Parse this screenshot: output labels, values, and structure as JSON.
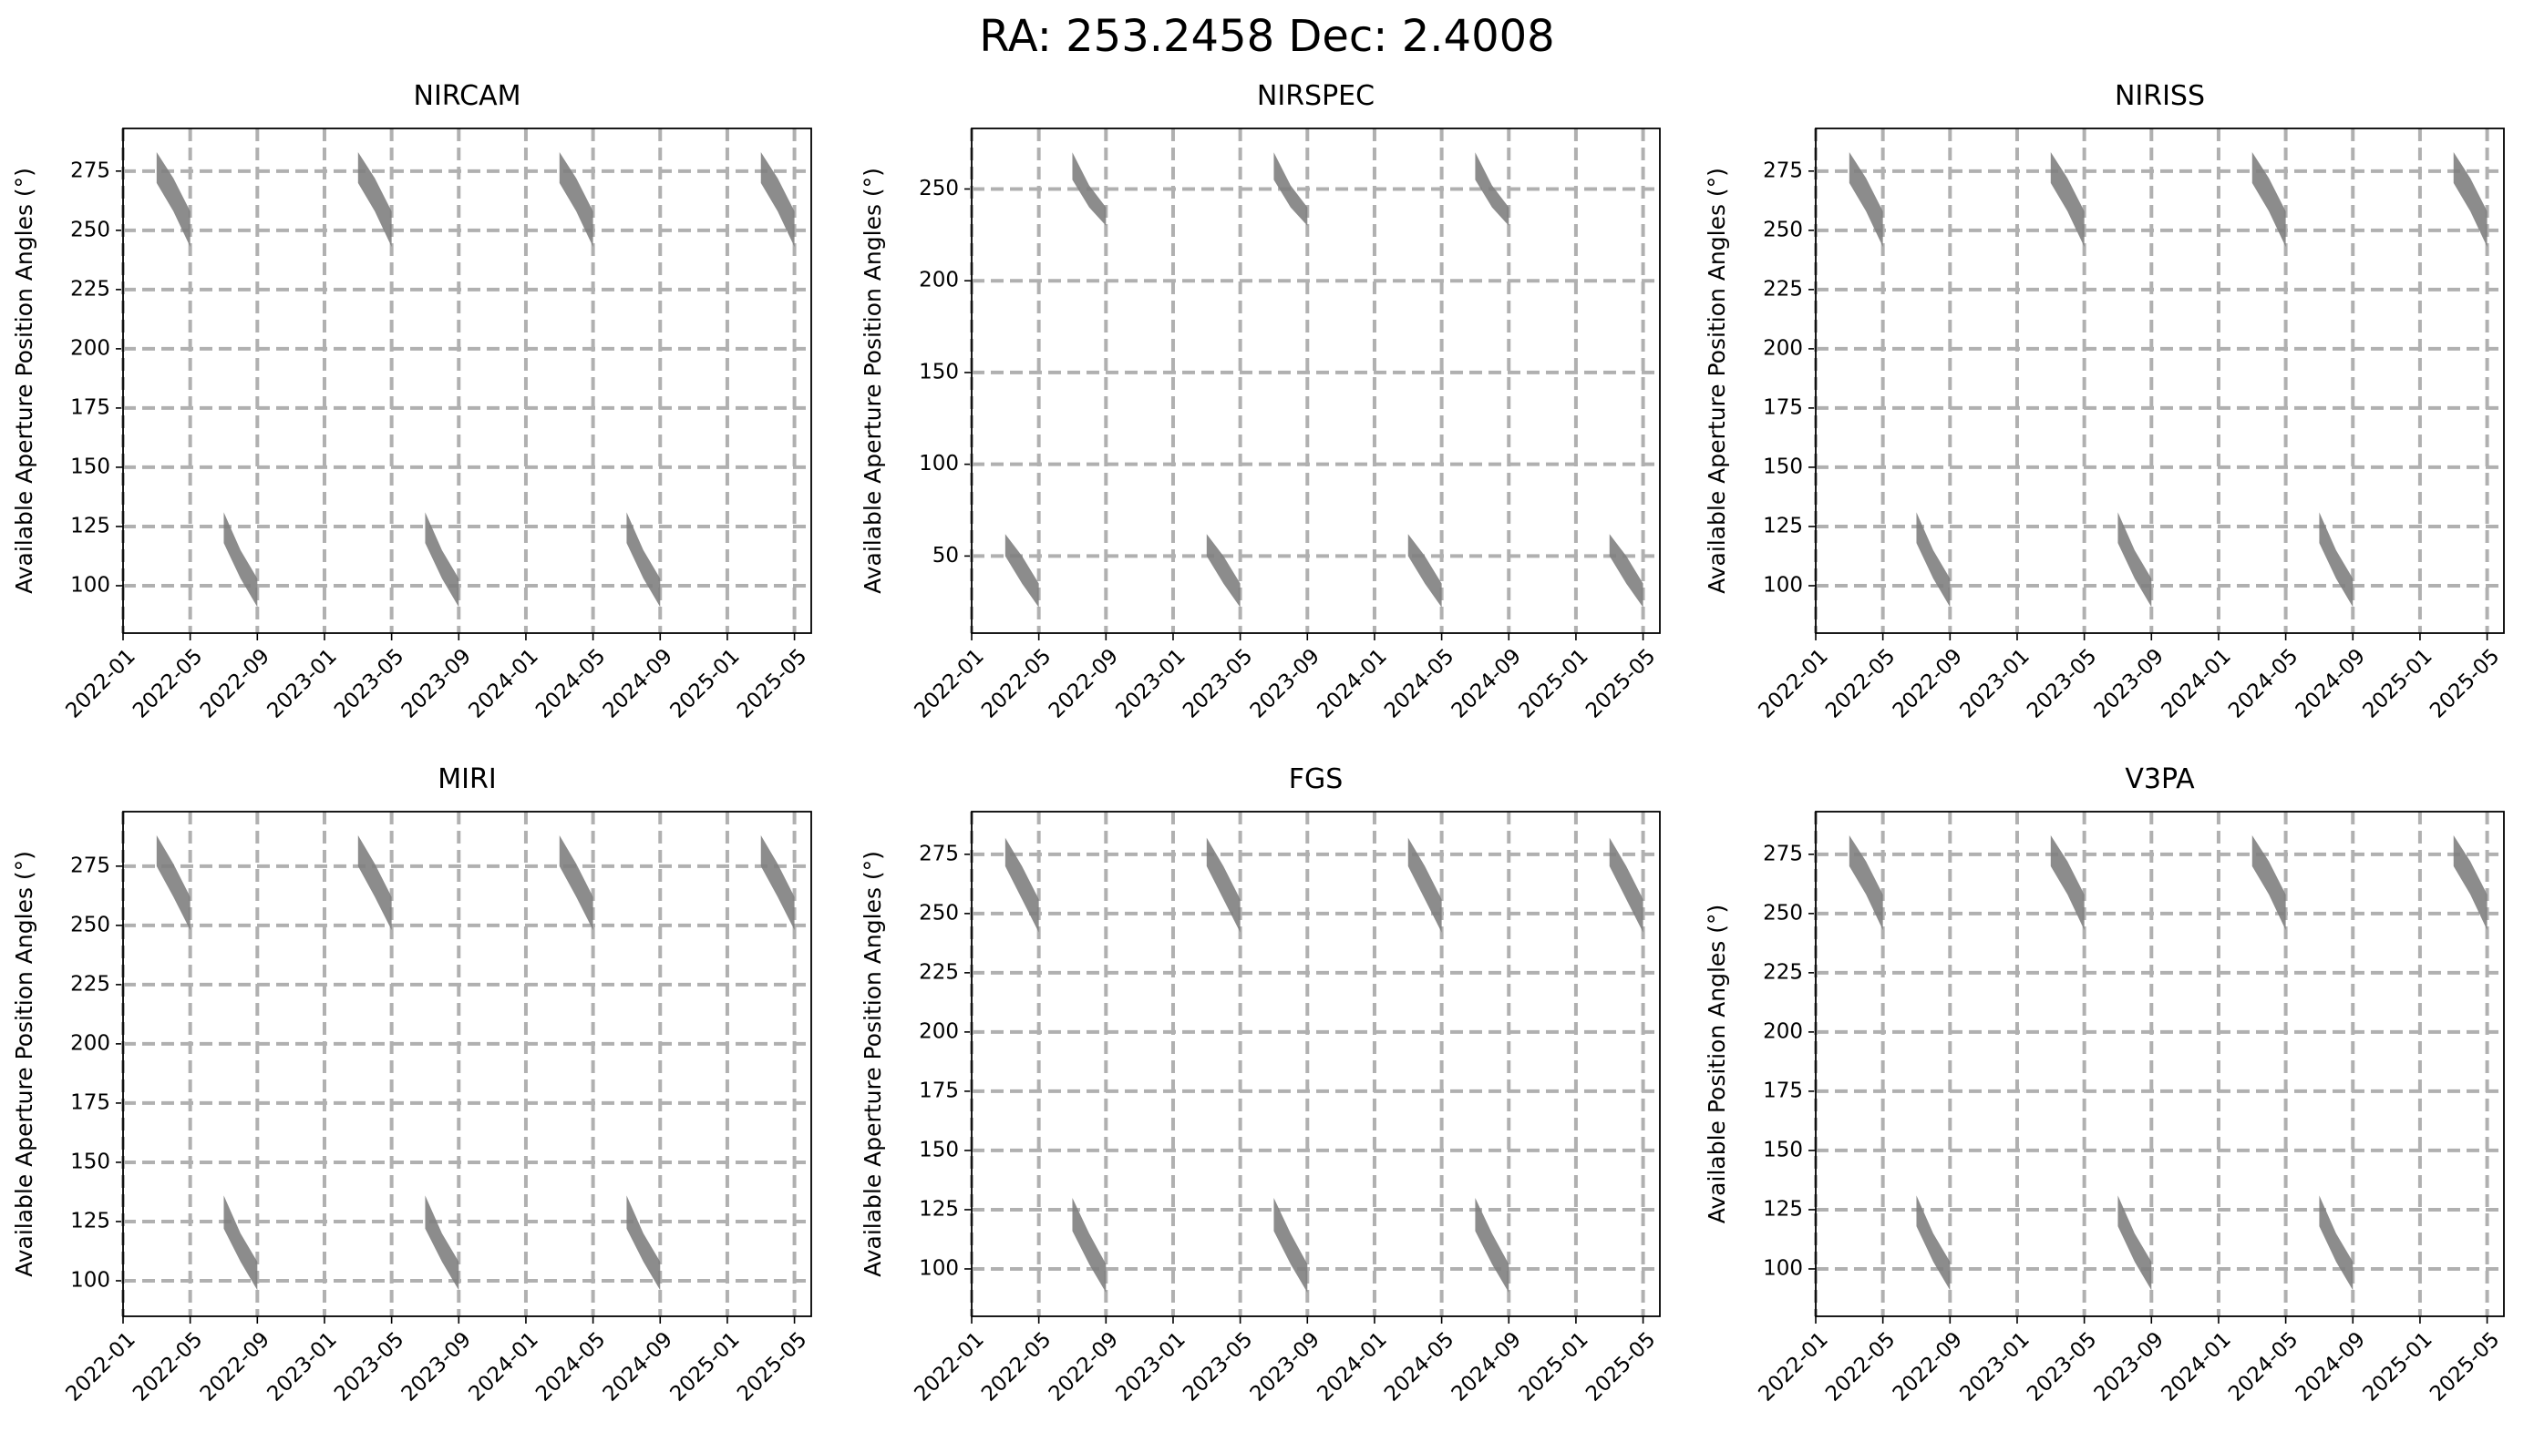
{
  "title": "RA: 253.2458 Dec: 2.4008",
  "chart_data": [
    {
      "type": "band",
      "title": "NIRCAM",
      "ylabel": "Available Aperture Position Angles (°)",
      "color": "#7f7f7f",
      "grid": true,
      "xlim": [
        "2022-01",
        "2025-06"
      ],
      "xticks": [
        "2022-01",
        "2022-05",
        "2022-09",
        "2023-01",
        "2023-05",
        "2023-09",
        "2024-01",
        "2024-05",
        "2024-09",
        "2025-01",
        "2025-05"
      ],
      "ylim": [
        80,
        293
      ],
      "yticks": [
        100,
        125,
        150,
        175,
        200,
        225,
        250,
        275
      ],
      "bands": [
        {
          "x": [
            "2022-03",
            "2022-04",
            "2022-05"
          ],
          "upper": [
            283,
            272,
            258
          ],
          "lower": [
            270,
            258,
            243
          ]
        },
        {
          "x": [
            "2023-03",
            "2023-04",
            "2023-05"
          ],
          "upper": [
            283,
            272,
            258
          ],
          "lower": [
            270,
            258,
            243
          ]
        },
        {
          "x": [
            "2024-03",
            "2024-04",
            "2024-05"
          ],
          "upper": [
            283,
            272,
            258
          ],
          "lower": [
            270,
            258,
            243
          ]
        },
        {
          "x": [
            "2025-03",
            "2025-04",
            "2025-05"
          ],
          "upper": [
            283,
            272,
            258
          ],
          "lower": [
            270,
            258,
            243
          ]
        },
        {
          "x": [
            "2022-07",
            "2022-08",
            "2022-09"
          ],
          "upper": [
            131,
            115,
            103
          ],
          "lower": [
            118,
            103,
            91
          ]
        },
        {
          "x": [
            "2023-07",
            "2023-08",
            "2023-09"
          ],
          "upper": [
            131,
            115,
            103
          ],
          "lower": [
            118,
            103,
            91
          ]
        },
        {
          "x": [
            "2024-07",
            "2024-08",
            "2024-09"
          ],
          "upper": [
            131,
            115,
            103
          ],
          "lower": [
            118,
            103,
            91
          ]
        }
      ]
    },
    {
      "type": "band",
      "title": "NIRSPEC",
      "ylabel": "Available Aperture Position Angles (°)",
      "color": "#7f7f7f",
      "grid": true,
      "xlim": [
        "2022-01",
        "2025-06"
      ],
      "xticks": [
        "2022-01",
        "2022-05",
        "2022-09",
        "2023-01",
        "2023-05",
        "2023-09",
        "2024-01",
        "2024-05",
        "2024-09",
        "2025-01",
        "2025-05"
      ],
      "ylim": [
        8,
        283
      ],
      "yticks": [
        50,
        100,
        150,
        200,
        250
      ],
      "bands": [
        {
          "x": [
            "2022-07",
            "2022-08",
            "2022-09"
          ],
          "upper": [
            270,
            252,
            240
          ],
          "lower": [
            255,
            240,
            230
          ]
        },
        {
          "x": [
            "2023-07",
            "2023-08",
            "2023-09"
          ],
          "upper": [
            270,
            252,
            240
          ],
          "lower": [
            255,
            240,
            230
          ]
        },
        {
          "x": [
            "2024-07",
            "2024-08",
            "2024-09"
          ],
          "upper": [
            270,
            252,
            240
          ],
          "lower": [
            255,
            240,
            230
          ]
        },
        {
          "x": [
            "2022-03",
            "2022-04",
            "2022-05"
          ],
          "upper": [
            62,
            50,
            35
          ],
          "lower": [
            50,
            35,
            22
          ]
        },
        {
          "x": [
            "2023-03",
            "2023-04",
            "2023-05"
          ],
          "upper": [
            62,
            50,
            35
          ],
          "lower": [
            50,
            35,
            22
          ]
        },
        {
          "x": [
            "2024-03",
            "2024-04",
            "2024-05"
          ],
          "upper": [
            62,
            50,
            35
          ],
          "lower": [
            50,
            35,
            22
          ]
        },
        {
          "x": [
            "2025-03",
            "2025-04",
            "2025-05"
          ],
          "upper": [
            62,
            50,
            35
          ],
          "lower": [
            50,
            35,
            22
          ]
        }
      ]
    },
    {
      "type": "band",
      "title": "NIRISS",
      "ylabel": "Available Aperture Position Angles (°)",
      "color": "#7f7f7f",
      "grid": true,
      "xlim": [
        "2022-01",
        "2025-06"
      ],
      "xticks": [
        "2022-01",
        "2022-05",
        "2022-09",
        "2023-01",
        "2023-05",
        "2023-09",
        "2024-01",
        "2024-05",
        "2024-09",
        "2025-01",
        "2025-05"
      ],
      "ylim": [
        80,
        293
      ],
      "yticks": [
        100,
        125,
        150,
        175,
        200,
        225,
        250,
        275
      ],
      "bands": [
        {
          "x": [
            "2022-03",
            "2022-04",
            "2022-05"
          ],
          "upper": [
            283,
            272,
            258
          ],
          "lower": [
            270,
            258,
            243
          ]
        },
        {
          "x": [
            "2023-03",
            "2023-04",
            "2023-05"
          ],
          "upper": [
            283,
            272,
            258
          ],
          "lower": [
            270,
            258,
            243
          ]
        },
        {
          "x": [
            "2024-03",
            "2024-04",
            "2024-05"
          ],
          "upper": [
            283,
            272,
            258
          ],
          "lower": [
            270,
            258,
            243
          ]
        },
        {
          "x": [
            "2025-03",
            "2025-04",
            "2025-05"
          ],
          "upper": [
            283,
            272,
            258
          ],
          "lower": [
            270,
            258,
            243
          ]
        },
        {
          "x": [
            "2022-07",
            "2022-08",
            "2022-09"
          ],
          "upper": [
            131,
            115,
            103
          ],
          "lower": [
            118,
            103,
            91
          ]
        },
        {
          "x": [
            "2023-07",
            "2023-08",
            "2023-09"
          ],
          "upper": [
            131,
            115,
            103
          ],
          "lower": [
            118,
            103,
            91
          ]
        },
        {
          "x": [
            "2024-07",
            "2024-08",
            "2024-09"
          ],
          "upper": [
            131,
            115,
            103
          ],
          "lower": [
            118,
            103,
            91
          ]
        }
      ]
    },
    {
      "type": "band",
      "title": "MIRI",
      "ylabel": "Available Aperture Position Angles (°)",
      "color": "#7f7f7f",
      "grid": true,
      "xlim": [
        "2022-01",
        "2025-06"
      ],
      "xticks": [
        "2022-01",
        "2022-05",
        "2022-09",
        "2023-01",
        "2023-05",
        "2023-09",
        "2024-01",
        "2024-05",
        "2024-09",
        "2025-01",
        "2025-05"
      ],
      "ylim": [
        85,
        298
      ],
      "yticks": [
        100,
        125,
        150,
        175,
        200,
        225,
        250,
        275
      ],
      "bands": [
        {
          "x": [
            "2022-03",
            "2022-04",
            "2022-05"
          ],
          "upper": [
            288,
            276,
            262
          ],
          "lower": [
            275,
            262,
            248
          ]
        },
        {
          "x": [
            "2023-03",
            "2023-04",
            "2023-05"
          ],
          "upper": [
            288,
            276,
            262
          ],
          "lower": [
            275,
            262,
            248
          ]
        },
        {
          "x": [
            "2024-03",
            "2024-04",
            "2024-05"
          ],
          "upper": [
            288,
            276,
            262
          ],
          "lower": [
            275,
            262,
            248
          ]
        },
        {
          "x": [
            "2025-03",
            "2025-04",
            "2025-05"
          ],
          "upper": [
            288,
            276,
            262
          ],
          "lower": [
            275,
            262,
            248
          ]
        },
        {
          "x": [
            "2022-07",
            "2022-08",
            "2022-09"
          ],
          "upper": [
            136,
            120,
            108
          ],
          "lower": [
            122,
            108,
            96
          ]
        },
        {
          "x": [
            "2023-07",
            "2023-08",
            "2023-09"
          ],
          "upper": [
            136,
            120,
            108
          ],
          "lower": [
            122,
            108,
            96
          ]
        },
        {
          "x": [
            "2024-07",
            "2024-08",
            "2024-09"
          ],
          "upper": [
            136,
            120,
            108
          ],
          "lower": [
            122,
            108,
            96
          ]
        }
      ]
    },
    {
      "type": "band",
      "title": "FGS",
      "ylabel": "Available Aperture Position Angles (°)",
      "color": "#7f7f7f",
      "grid": true,
      "xlim": [
        "2022-01",
        "2025-06"
      ],
      "xticks": [
        "2022-01",
        "2022-05",
        "2022-09",
        "2023-01",
        "2023-05",
        "2023-09",
        "2024-01",
        "2024-05",
        "2024-09",
        "2025-01",
        "2025-05"
      ],
      "ylim": [
        80,
        293
      ],
      "yticks": [
        100,
        125,
        150,
        175,
        200,
        225,
        250,
        275
      ],
      "bands": [
        {
          "x": [
            "2022-03",
            "2022-04",
            "2022-05"
          ],
          "upper": [
            282,
            270,
            256
          ],
          "lower": [
            270,
            256,
            242
          ]
        },
        {
          "x": [
            "2023-03",
            "2023-04",
            "2023-05"
          ],
          "upper": [
            282,
            270,
            256
          ],
          "lower": [
            270,
            256,
            242
          ]
        },
        {
          "x": [
            "2024-03",
            "2024-04",
            "2024-05"
          ],
          "upper": [
            282,
            270,
            256
          ],
          "lower": [
            270,
            256,
            242
          ]
        },
        {
          "x": [
            "2025-03",
            "2025-04",
            "2025-05"
          ],
          "upper": [
            282,
            270,
            256
          ],
          "lower": [
            270,
            256,
            242
          ]
        },
        {
          "x": [
            "2022-07",
            "2022-08",
            "2022-09"
          ],
          "upper": [
            130,
            115,
            102
          ],
          "lower": [
            116,
            102,
            90
          ]
        },
        {
          "x": [
            "2023-07",
            "2023-08",
            "2023-09"
          ],
          "upper": [
            130,
            115,
            102
          ],
          "lower": [
            116,
            102,
            90
          ]
        },
        {
          "x": [
            "2024-07",
            "2024-08",
            "2024-09"
          ],
          "upper": [
            130,
            115,
            102
          ],
          "lower": [
            116,
            102,
            90
          ]
        }
      ]
    },
    {
      "type": "band",
      "title": "V3PA",
      "ylabel": "Available Position Angles (°)",
      "color": "#7f7f7f",
      "grid": true,
      "xlim": [
        "2022-01",
        "2025-06"
      ],
      "xticks": [
        "2022-01",
        "2022-05",
        "2022-09",
        "2023-01",
        "2023-05",
        "2023-09",
        "2024-01",
        "2024-05",
        "2024-09",
        "2025-01",
        "2025-05"
      ],
      "ylim": [
        80,
        293
      ],
      "yticks": [
        100,
        125,
        150,
        175,
        200,
        225,
        250,
        275
      ],
      "bands": [
        {
          "x": [
            "2022-03",
            "2022-04",
            "2022-05"
          ],
          "upper": [
            283,
            272,
            258
          ],
          "lower": [
            270,
            258,
            243
          ]
        },
        {
          "x": [
            "2023-03",
            "2023-04",
            "2023-05"
          ],
          "upper": [
            283,
            272,
            258
          ],
          "lower": [
            270,
            258,
            243
          ]
        },
        {
          "x": [
            "2024-03",
            "2024-04",
            "2024-05"
          ],
          "upper": [
            283,
            272,
            258
          ],
          "lower": [
            270,
            258,
            243
          ]
        },
        {
          "x": [
            "2025-03",
            "2025-04",
            "2025-05"
          ],
          "upper": [
            283,
            272,
            258
          ],
          "lower": [
            270,
            258,
            243
          ]
        },
        {
          "x": [
            "2022-07",
            "2022-08",
            "2022-09"
          ],
          "upper": [
            131,
            115,
            103
          ],
          "lower": [
            118,
            103,
            91
          ]
        },
        {
          "x": [
            "2023-07",
            "2023-08",
            "2023-09"
          ],
          "upper": [
            131,
            115,
            103
          ],
          "lower": [
            118,
            103,
            91
          ]
        },
        {
          "x": [
            "2024-07",
            "2024-08",
            "2024-09"
          ],
          "upper": [
            131,
            115,
            103
          ],
          "lower": [
            118,
            103,
            91
          ]
        }
      ]
    }
  ]
}
